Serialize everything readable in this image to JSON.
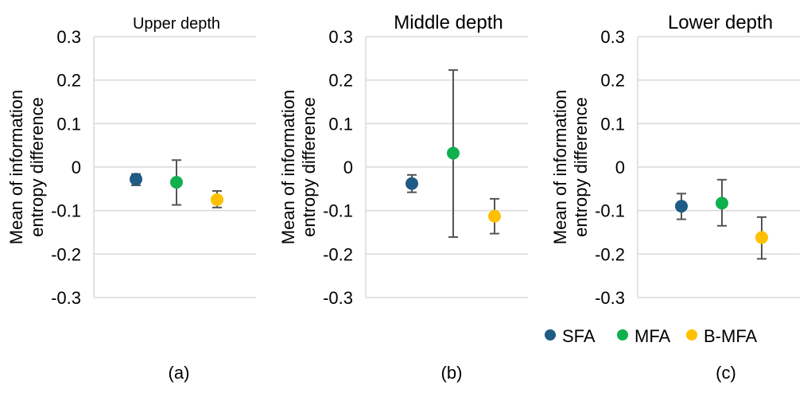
{
  "chart_data": [
    {
      "type": "scatter",
      "title": "Upper depth",
      "ylabel": "Mean of information entropy difference",
      "caption": "(a)",
      "ylim": [
        -0.3,
        0.3
      ],
      "yticks": [
        "0.3",
        "0.2",
        "0.1",
        "0",
        "-0.1",
        "-0.2",
        "-0.3"
      ],
      "series": [
        {
          "name": "SFA",
          "y": -0.028,
          "err_low": -0.042,
          "err_high": -0.016
        },
        {
          "name": "MFA",
          "y": -0.035,
          "err_low": -0.087,
          "err_high": 0.016
        },
        {
          "name": "B-MFA",
          "y": -0.075,
          "err_low": -0.093,
          "err_high": -0.055
        }
      ]
    },
    {
      "type": "scatter",
      "title": "Middle depth",
      "ylabel": "Mean of information entropy difference",
      "caption": "(b)",
      "ylim": [
        -0.3,
        0.3
      ],
      "yticks": [
        "0.3",
        "0.2",
        "0.1",
        "0",
        "-0.1",
        "-0.2",
        "-0.3"
      ],
      "series": [
        {
          "name": "SFA",
          "y": -0.038,
          "err_low": -0.058,
          "err_high": -0.018
        },
        {
          "name": "MFA",
          "y": 0.032,
          "err_low": -0.161,
          "err_high": 0.223
        },
        {
          "name": "B-MFA",
          "y": -0.113,
          "err_low": -0.153,
          "err_high": -0.073
        }
      ]
    },
    {
      "type": "scatter",
      "title": "Lower depth",
      "ylabel": "Mean of information entropy difference",
      "caption": "(c)",
      "ylim": [
        -0.3,
        0.3
      ],
      "yticks": [
        "0.3",
        "0.2",
        "0.1",
        "0",
        "-0.1",
        "-0.2",
        "-0.3"
      ],
      "series": [
        {
          "name": "SFA",
          "y": -0.09,
          "err_low": -0.12,
          "err_high": -0.061
        },
        {
          "name": "MFA",
          "y": -0.083,
          "err_low": -0.135,
          "err_high": -0.029
        },
        {
          "name": "B-MFA",
          "y": -0.162,
          "err_low": -0.211,
          "err_high": -0.115
        }
      ]
    }
  ],
  "legend": {
    "placement": "bottom-right",
    "items": [
      {
        "name": "SFA",
        "color": "#1f5b84"
      },
      {
        "name": "MFA",
        "color": "#10b04e"
      },
      {
        "name": "B-MFA",
        "color": "#ffc000"
      }
    ]
  }
}
